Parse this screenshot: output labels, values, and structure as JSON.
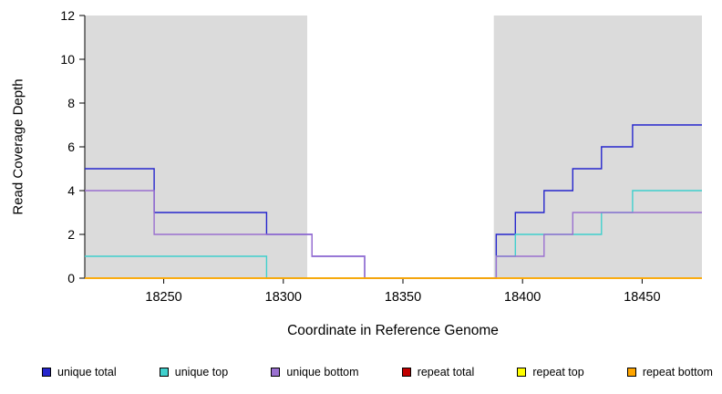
{
  "chart_data": {
    "type": "line",
    "step": true,
    "title": "",
    "xlabel": "Coordinate in Reference Genome",
    "ylabel": "Read Coverage Depth",
    "xlim": [
      18217,
      18475
    ],
    "ylim": [
      0,
      12
    ],
    "xticks": [
      18250,
      18300,
      18350,
      18400,
      18450
    ],
    "yticks": [
      0,
      2,
      4,
      6,
      8,
      10,
      12
    ],
    "grid": false,
    "legend_position": "bottom",
    "plot_background": "#ffffff",
    "shaded_region_color": "#dbdbdb",
    "shaded_regions": [
      {
        "x0": 18217,
        "x1": 18310
      },
      {
        "x0": 18388,
        "x1": 18475
      }
    ],
    "series": [
      {
        "name": "unique total",
        "color": "#2626cd",
        "steps": [
          [
            18217,
            5
          ],
          [
            18246,
            3
          ],
          [
            18293,
            2
          ],
          [
            18312,
            1
          ],
          [
            18334,
            0
          ],
          [
            18389,
            2
          ],
          [
            18397,
            3
          ],
          [
            18409,
            4
          ],
          [
            18421,
            5
          ],
          [
            18433,
            6
          ],
          [
            18446,
            7
          ],
          [
            18475,
            7
          ]
        ]
      },
      {
        "name": "unique top",
        "color": "#40d0cd",
        "steps": [
          [
            18217,
            1
          ],
          [
            18293,
            0
          ],
          [
            18389,
            1
          ],
          [
            18397,
            2
          ],
          [
            18433,
            3
          ],
          [
            18446,
            4
          ],
          [
            18475,
            4
          ]
        ]
      },
      {
        "name": "unique bottom",
        "color": "#9a70d0",
        "steps": [
          [
            18217,
            4
          ],
          [
            18246,
            2
          ],
          [
            18312,
            1
          ],
          [
            18334,
            0
          ],
          [
            18389,
            1
          ],
          [
            18409,
            2
          ],
          [
            18421,
            3
          ],
          [
            18475,
            3
          ]
        ]
      },
      {
        "name": "repeat total",
        "color": "#c10000",
        "steps": [
          [
            18217,
            0
          ],
          [
            18475,
            0
          ]
        ]
      },
      {
        "name": "repeat top",
        "color": "#ffff00",
        "steps": [
          [
            18217,
            0
          ],
          [
            18475,
            0
          ]
        ]
      },
      {
        "name": "repeat bottom",
        "color": "#ffa500",
        "steps": [
          [
            18217,
            0
          ],
          [
            18475,
            0
          ]
        ]
      }
    ]
  }
}
